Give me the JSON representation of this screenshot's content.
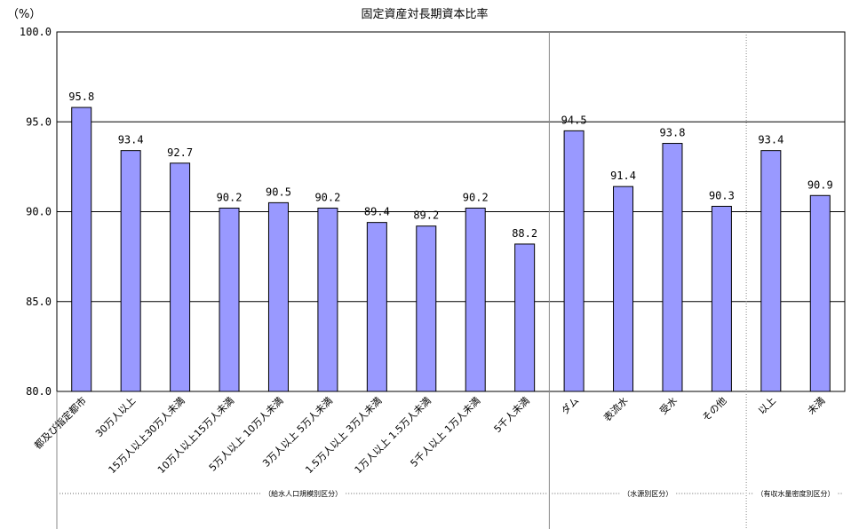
{
  "chart_data": {
    "type": "bar",
    "title": "固定資産対長期資本比率",
    "ylabel": "（%）",
    "ylim": [
      80,
      100
    ],
    "yticks": [
      "80.0",
      "85.0",
      "90.0",
      "95.0",
      "100.0"
    ],
    "bar_color": "#9999ff",
    "categories": [
      "都及び指定都市",
      "30万人以上",
      "15万人以上30万人未満",
      "10万人以上15万人未満",
      "5万人以上 10万人未満",
      "3万人以上 5万人未満",
      "1.5万人以上 3万人未満",
      "1万人以上 1.5万人未満",
      "5千人以上 1万人未満",
      "5千人未満",
      "ダム",
      "表流水",
      "受水",
      "その他",
      "以上",
      "未満"
    ],
    "values": [
      95.8,
      93.4,
      92.7,
      90.2,
      90.5,
      90.2,
      89.4,
      89.2,
      90.2,
      88.2,
      94.5,
      91.4,
      93.8,
      90.3,
      93.4,
      90.9
    ],
    "value_labels": [
      "95.8",
      "93.4",
      "92.7",
      "90.2",
      "90.5",
      "90.2",
      "89.4",
      "89.2",
      "90.2",
      "88.2",
      "94.5",
      "91.4",
      "93.8",
      "90.3",
      "93.4",
      "90.9"
    ],
    "groups": [
      {
        "label": "（給水人口規模別区分）",
        "start": 0,
        "end": 9
      },
      {
        "label": "（水源別区分）",
        "start": 10,
        "end": 13
      },
      {
        "label": "（有収水量密度別区分）",
        "start": 14,
        "end": 15
      }
    ]
  }
}
